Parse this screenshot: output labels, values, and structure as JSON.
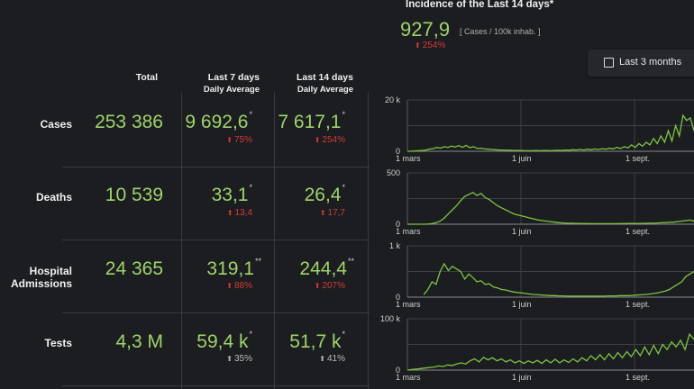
{
  "incidence": {
    "title": "Incidence of the Last 14 days*",
    "value": "927,9",
    "unit": "[ Cases / 100k inhab. ]",
    "change": "254%",
    "change_direction": "up",
    "change_color": "#d43a3a"
  },
  "toggle": {
    "label": "Last 3 months",
    "checked": false
  },
  "columns": {
    "total": "Total",
    "last7": "Last 7 days",
    "last7_sub": "Daily Average",
    "last14": "Last 14 days",
    "last14_sub": "Daily Average"
  },
  "rows": [
    {
      "label": "Cases",
      "total": "253 386",
      "last7": "9 692,6",
      "last7_mark": "*",
      "last7_change": "75%",
      "last14": "7 617,1",
      "last14_mark": "*",
      "last14_change": "254%",
      "change_color": "red"
    },
    {
      "label": "Deaths",
      "total": "10 539",
      "last7": "33,1",
      "last7_mark": "*",
      "last7_change": "13,4",
      "last14": "26,4",
      "last14_mark": "*",
      "last14_change": "17,7",
      "change_color": "red"
    },
    {
      "label_line1": "Hospital",
      "label_line2": "Admissions",
      "total": "24 365",
      "last7": "319,1",
      "last7_mark": "**",
      "last7_change": "88%",
      "last14": "244,4",
      "last14_mark": "**",
      "last14_change": "207%",
      "change_color": "red"
    },
    {
      "label": "Tests",
      "total": "4,3 M",
      "last7": "59,4 k",
      "last7_mark": "*",
      "last7_change": "35%",
      "last14": "51,7 k",
      "last14_mark": "*",
      "last14_change": "41%",
      "change_color": "grey"
    }
  ],
  "colors": {
    "accent": "#9fd36b",
    "line": "#7cc444",
    "up_bad": "#d43a3a",
    "up_neutral": "#bbbbbb"
  },
  "chart_data": [
    {
      "type": "line",
      "name": "cases",
      "ylim": [
        0,
        20000
      ],
      "yticks": [
        "20 k",
        "0"
      ],
      "xticks": [
        "1 mars",
        "1 juin",
        "1 sept."
      ],
      "values": [
        0,
        0,
        100,
        200,
        300,
        500,
        800,
        1000,
        1500,
        1200,
        1800,
        1500,
        2000,
        1700,
        2200,
        1500,
        2300,
        1400,
        1800,
        1100,
        1200,
        900,
        800,
        700,
        600,
        500,
        500,
        400,
        400,
        300,
        300,
        300,
        200,
        200,
        200,
        300,
        200,
        300,
        300,
        200,
        300,
        400,
        300,
        500,
        400,
        600,
        500,
        700,
        500,
        800,
        600,
        900,
        700,
        1000,
        800,
        1200,
        900,
        1500,
        1100,
        1800,
        1300,
        2500,
        1500,
        3000,
        2000,
        3500,
        2500,
        5000,
        3000,
        6000,
        3500,
        8000,
        4000,
        10000,
        6000,
        14000,
        12000,
        13000,
        8000
      ]
    },
    {
      "type": "line",
      "name": "deaths",
      "ylim": [
        0,
        500
      ],
      "yticks": [
        "500",
        "0"
      ],
      "xticks": [
        "1 mars",
        "1 juin",
        "1 sept."
      ],
      "values": [
        0,
        0,
        0,
        0,
        0,
        2,
        5,
        15,
        30,
        60,
        100,
        140,
        180,
        230,
        270,
        290,
        310,
        280,
        300,
        260,
        240,
        210,
        180,
        160,
        140,
        120,
        100,
        90,
        80,
        70,
        60,
        50,
        40,
        35,
        30,
        25,
        20,
        15,
        12,
        10,
        10,
        8,
        8,
        6,
        6,
        5,
        5,
        5,
        5,
        5,
        5,
        5,
        6,
        6,
        7,
        7,
        8,
        8,
        9,
        10,
        10,
        12,
        14,
        16,
        18,
        20,
        25,
        30,
        35,
        40,
        30
      ]
    },
    {
      "type": "line",
      "name": "hospital_admissions",
      "ylim": [
        0,
        1000
      ],
      "yticks": [
        "1 k",
        "0"
      ],
      "xticks": [
        "1 mars",
        "1 juin",
        "1 sept."
      ],
      "values": [
        null,
        null,
        null,
        null,
        50,
        150,
        300,
        250,
        500,
        650,
        520,
        600,
        550,
        500,
        350,
        450,
        380,
        300,
        320,
        250,
        260,
        200,
        180,
        150,
        140,
        120,
        100,
        90,
        80,
        70,
        60,
        50,
        45,
        40,
        35,
        30,
        30,
        25,
        25,
        20,
        20,
        20,
        20,
        20,
        20,
        20,
        20,
        20,
        20,
        25,
        25,
        25,
        30,
        30,
        30,
        35,
        40,
        45,
        50,
        60,
        70,
        80,
        100,
        120,
        150,
        200,
        250,
        300,
        400,
        450,
        500
      ]
    },
    {
      "type": "line",
      "name": "tests",
      "ylim": [
        0,
        100000
      ],
      "yticks": [
        "100 k",
        "0"
      ],
      "xticks": [
        "1 mars",
        "1 juin",
        "1 sept."
      ],
      "values": [
        0,
        1000,
        2000,
        3000,
        4000,
        5000,
        6000,
        8000,
        7000,
        10000,
        9000,
        12000,
        14000,
        12000,
        18000,
        22000,
        16000,
        25000,
        20000,
        24000,
        18000,
        22000,
        16000,
        20000,
        14000,
        18000,
        13000,
        18000,
        14000,
        19000,
        13000,
        20000,
        14000,
        21000,
        14000,
        20000,
        15000,
        22000,
        16000,
        24000,
        18000,
        28000,
        20000,
        30000,
        20000,
        32000,
        22000,
        34000,
        24000,
        36000,
        26000,
        40000,
        28000,
        45000,
        30000,
        48000,
        32000,
        50000,
        40000,
        55000,
        45000,
        58000,
        40000,
        70000,
        60000
      ]
    }
  ]
}
